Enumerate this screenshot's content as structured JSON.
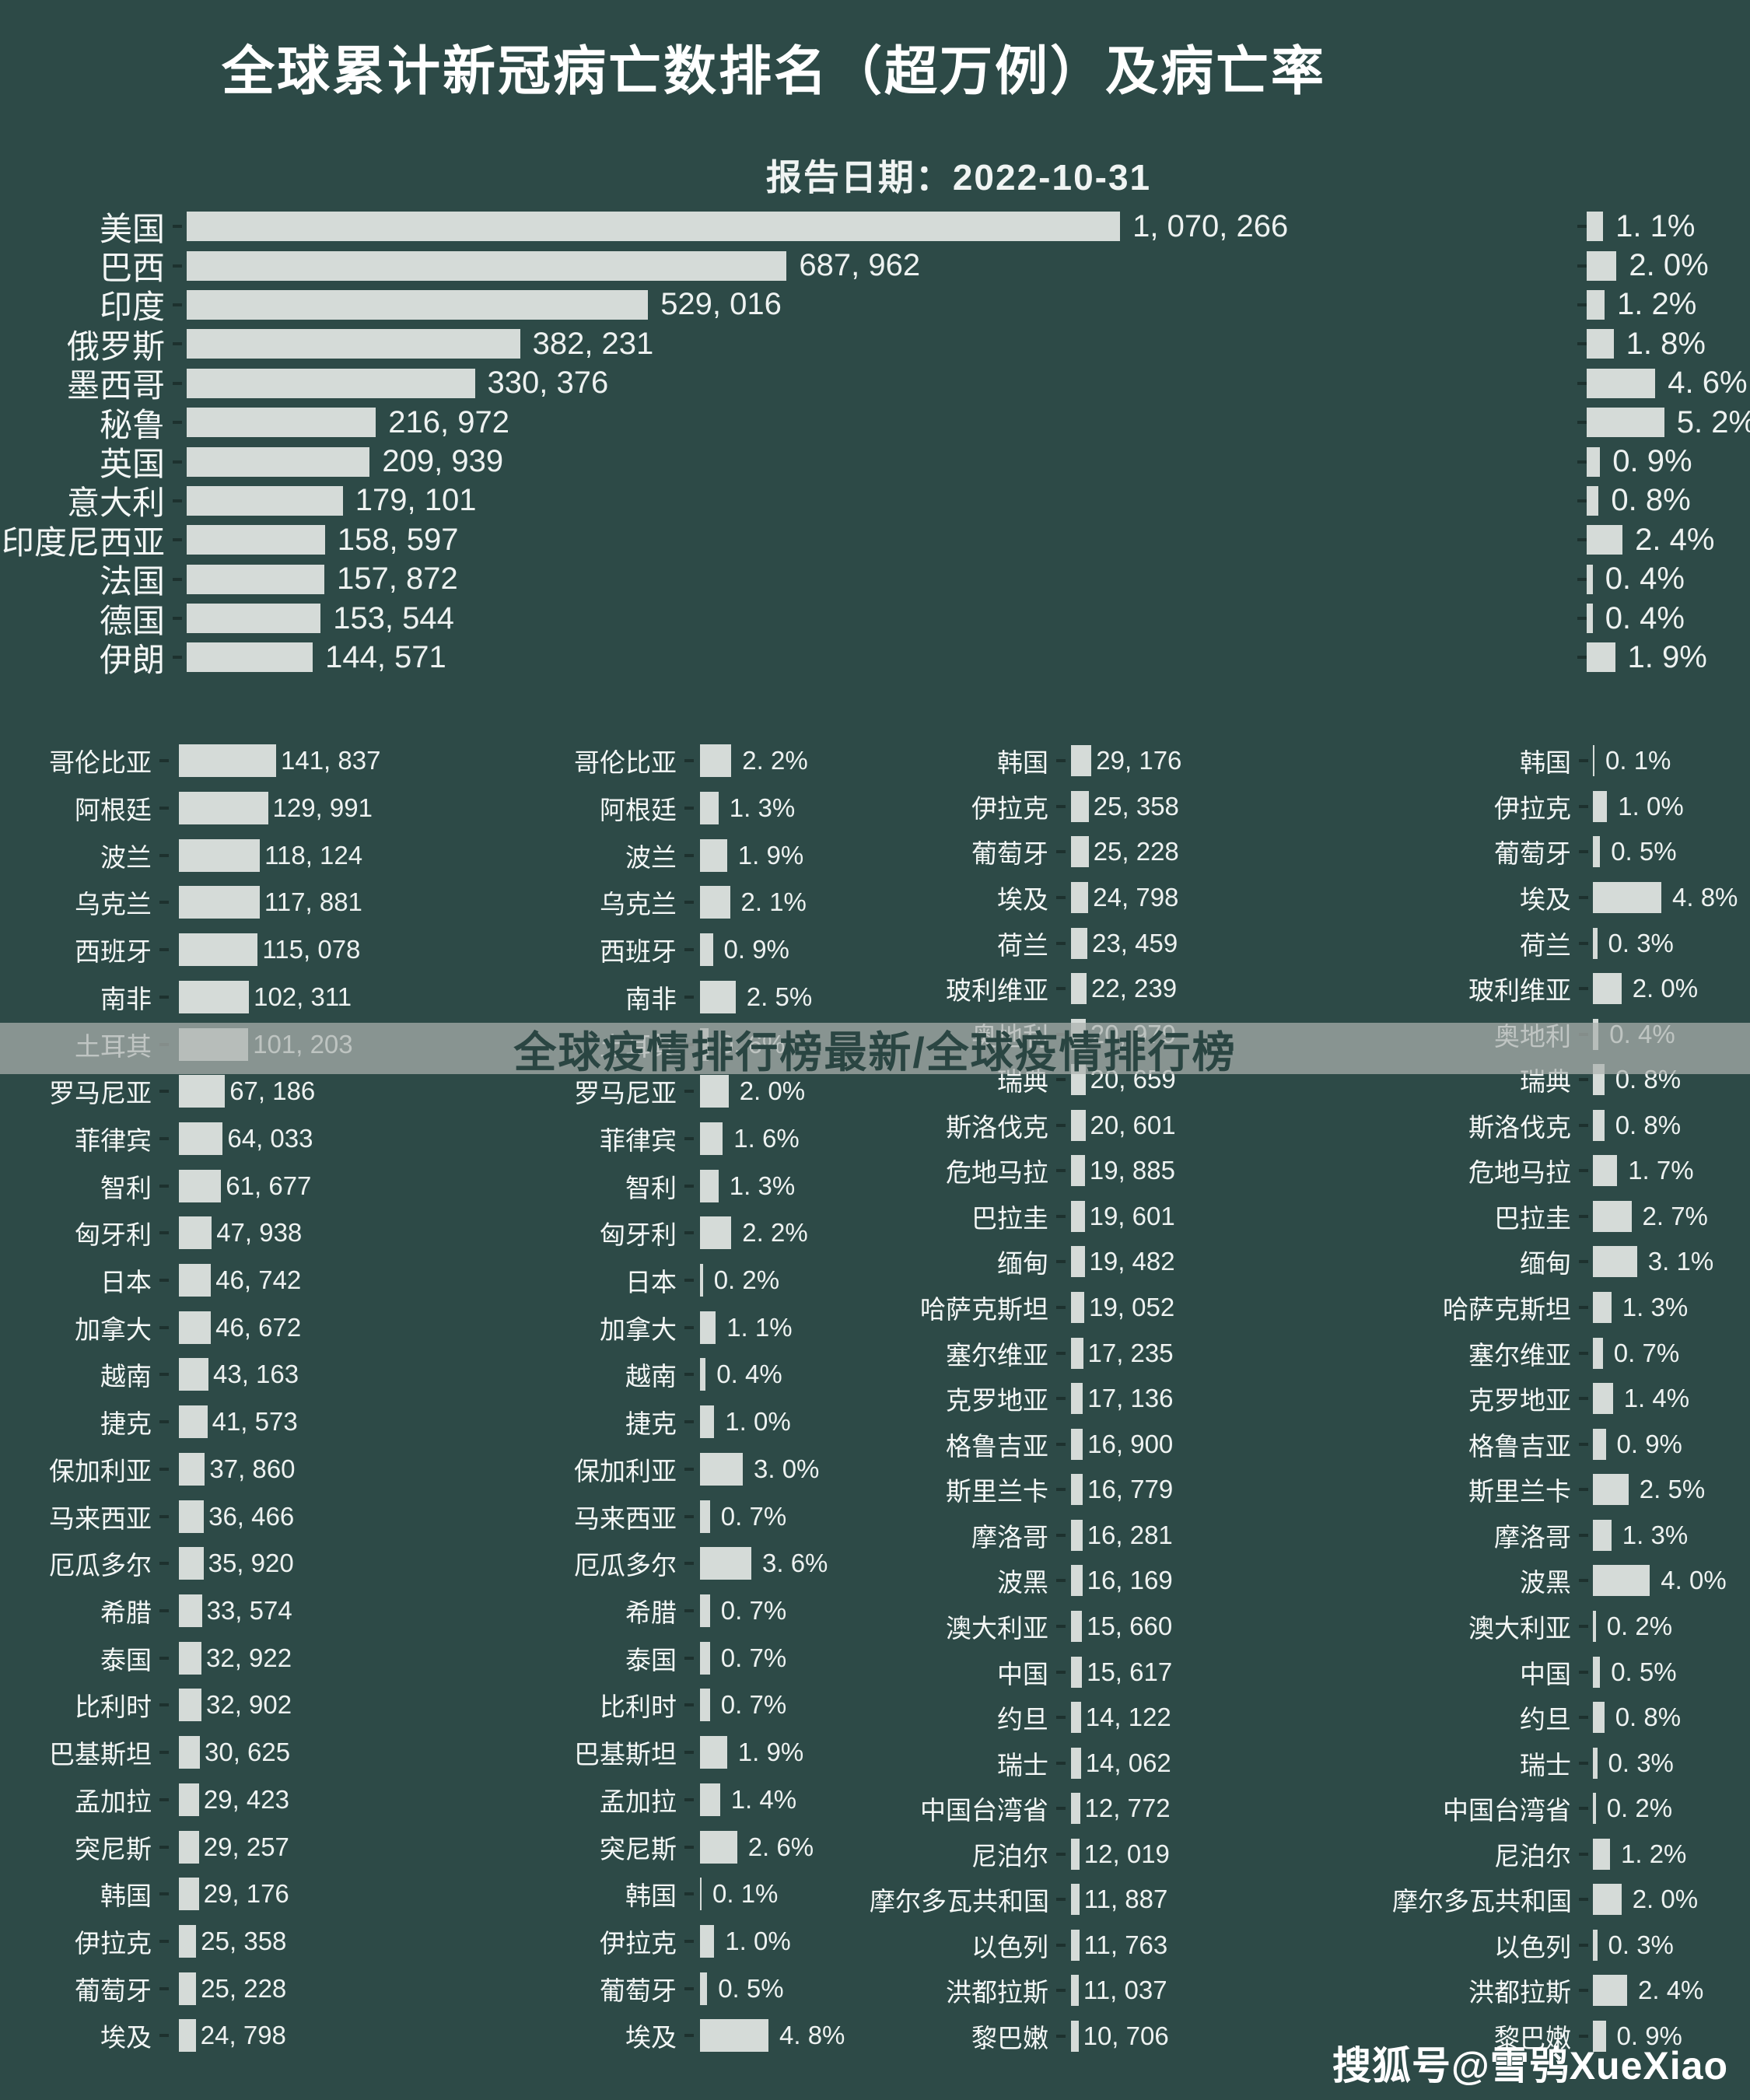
{
  "title": "全球累计新冠病亡数排名（超万例）及病亡率",
  "subtitle": "报告日期：2022-10-31",
  "watermarks": {
    "center": "全球疫情排行榜最新/全球疫情排行榜",
    "bottom": "搜狐号@雪鸮XueXiao"
  },
  "colors": {
    "background": "#2d4a47",
    "bar": "#d5dbd8",
    "text": "#f4f7f6",
    "band": "rgba(172,177,175,0.72)",
    "band_text": "#2a4542"
  },
  "chart_data": {
    "type": "bar",
    "orientation": "horizontal",
    "title": "全球累计新冠病亡数排名（超万例）及病亡率",
    "subtitle": "报告日期：2022-10-31",
    "value_series_name": "累计病亡数",
    "rate_series_name": "病亡率",
    "grid": false,
    "main": {
      "rows": [
        {
          "country": "美国",
          "deaths": "1, 070, 266",
          "rate": "1. 1%"
        },
        {
          "country": "巴西",
          "deaths": "687, 962",
          "rate": "2. 0%"
        },
        {
          "country": "印度",
          "deaths": "529, 016",
          "rate": "1. 2%"
        },
        {
          "country": "俄罗斯",
          "deaths": "382, 231",
          "rate": "1. 8%"
        },
        {
          "country": "墨西哥",
          "deaths": "330, 376",
          "rate": "4. 6%"
        },
        {
          "country": "秘鲁",
          "deaths": "216, 972",
          "rate": "5. 2%"
        },
        {
          "country": "英国",
          "deaths": "209, 939",
          "rate": "0. 9%"
        },
        {
          "country": "意大利",
          "deaths": "179, 101",
          "rate": "0. 8%"
        },
        {
          "country": "印度尼西亚",
          "deaths": "158, 597",
          "rate": "2. 4%"
        },
        {
          "country": "法国",
          "deaths": "157, 872",
          "rate": "0. 4%"
        },
        {
          "country": "德国",
          "deaths": "153, 544",
          "rate": "0. 4%"
        },
        {
          "country": "伊朗",
          "deaths": "144, 571",
          "rate": "1. 9%"
        }
      ]
    },
    "group1": {
      "rows": [
        {
          "country": "哥伦比亚",
          "deaths": "141, 837",
          "rate": "2. 2%"
        },
        {
          "country": "阿根廷",
          "deaths": "129, 991",
          "rate": "1. 3%"
        },
        {
          "country": "波兰",
          "deaths": "118, 124",
          "rate": "1. 9%"
        },
        {
          "country": "乌克兰",
          "deaths": "117, 881",
          "rate": "2. 1%"
        },
        {
          "country": "西班牙",
          "deaths": "115, 078",
          "rate": "0. 9%"
        },
        {
          "country": "南非",
          "deaths": "102, 311",
          "rate": "2. 5%"
        },
        {
          "country": "土耳其",
          "deaths": "101, 203",
          "rate": "0. 6%"
        },
        {
          "country": "罗马尼亚",
          "deaths": "67, 186",
          "rate": "2. 0%"
        },
        {
          "country": "菲律宾",
          "deaths": "64, 033",
          "rate": "1. 6%"
        },
        {
          "country": "智利",
          "deaths": "61, 677",
          "rate": "1. 3%"
        },
        {
          "country": "匈牙利",
          "deaths": "47, 938",
          "rate": "2. 2%"
        },
        {
          "country": "日本",
          "deaths": "46, 742",
          "rate": "0. 2%"
        },
        {
          "country": "加拿大",
          "deaths": "46, 672",
          "rate": "1. 1%"
        },
        {
          "country": "越南",
          "deaths": "43, 163",
          "rate": "0. 4%"
        },
        {
          "country": "捷克",
          "deaths": "41, 573",
          "rate": "1. 0%"
        },
        {
          "country": "保加利亚",
          "deaths": "37, 860",
          "rate": "3. 0%"
        },
        {
          "country": "马来西亚",
          "deaths": "36, 466",
          "rate": "0. 7%"
        },
        {
          "country": "厄瓜多尔",
          "deaths": "35, 920",
          "rate": "3. 6%"
        },
        {
          "country": "希腊",
          "deaths": "33, 574",
          "rate": "0. 7%"
        },
        {
          "country": "泰国",
          "deaths": "32, 922",
          "rate": "0. 7%"
        },
        {
          "country": "比利时",
          "deaths": "32, 902",
          "rate": "0. 7%"
        },
        {
          "country": "巴基斯坦",
          "deaths": "30, 625",
          "rate": "1. 9%"
        },
        {
          "country": "孟加拉",
          "deaths": "29, 423",
          "rate": "1. 4%"
        },
        {
          "country": "突尼斯",
          "deaths": "29, 257",
          "rate": "2. 6%"
        },
        {
          "country": "韩国",
          "deaths": "29, 176",
          "rate": "0. 1%"
        },
        {
          "country": "伊拉克",
          "deaths": "25, 358",
          "rate": "1. 0%"
        },
        {
          "country": "葡萄牙",
          "deaths": "25, 228",
          "rate": "0. 5%"
        },
        {
          "country": "埃及",
          "deaths": "24, 798",
          "rate": "4. 8%"
        }
      ]
    },
    "group2": {
      "rows": [
        {
          "country": "韩国",
          "deaths": "29, 176",
          "rate": "0. 1%"
        },
        {
          "country": "伊拉克",
          "deaths": "25, 358",
          "rate": "1. 0%"
        },
        {
          "country": "葡萄牙",
          "deaths": "25, 228",
          "rate": "0. 5%"
        },
        {
          "country": "埃及",
          "deaths": "24, 798",
          "rate": "4. 8%"
        },
        {
          "country": "荷兰",
          "deaths": "23, 459",
          "rate": "0. 3%"
        },
        {
          "country": "玻利维亚",
          "deaths": "22, 239",
          "rate": "2. 0%"
        },
        {
          "country": "奥地利",
          "deaths": "20, 979",
          "rate": "0. 4%"
        },
        {
          "country": "瑞典",
          "deaths": "20, 659",
          "rate": "0. 8%"
        },
        {
          "country": "斯洛伐克",
          "deaths": "20, 601",
          "rate": "0. 8%"
        },
        {
          "country": "危地马拉",
          "deaths": "19, 885",
          "rate": "1. 7%"
        },
        {
          "country": "巴拉圭",
          "deaths": "19, 601",
          "rate": "2. 7%"
        },
        {
          "country": "缅甸",
          "deaths": "19, 482",
          "rate": "3. 1%"
        },
        {
          "country": "哈萨克斯坦",
          "deaths": "19, 052",
          "rate": "1. 3%"
        },
        {
          "country": "塞尔维亚",
          "deaths": "17, 235",
          "rate": "0. 7%"
        },
        {
          "country": "克罗地亚",
          "deaths": "17, 136",
          "rate": "1. 4%"
        },
        {
          "country": "格鲁吉亚",
          "deaths": "16, 900",
          "rate": "0. 9%"
        },
        {
          "country": "斯里兰卡",
          "deaths": "16, 779",
          "rate": "2. 5%"
        },
        {
          "country": "摩洛哥",
          "deaths": "16, 281",
          "rate": "1. 3%"
        },
        {
          "country": "波黑",
          "deaths": "16, 169",
          "rate": "4. 0%"
        },
        {
          "country": "澳大利亚",
          "deaths": "15, 660",
          "rate": "0. 2%"
        },
        {
          "country": "中国",
          "deaths": "15, 617",
          "rate": "0. 5%"
        },
        {
          "country": "约旦",
          "deaths": "14, 122",
          "rate": "0. 8%"
        },
        {
          "country": "瑞士",
          "deaths": "14, 062",
          "rate": "0. 3%"
        },
        {
          "country": "中国台湾省",
          "deaths": "12, 772",
          "rate": "0. 2%"
        },
        {
          "country": "尼泊尔",
          "deaths": "12, 019",
          "rate": "1. 2%"
        },
        {
          "country": "摩尔多瓦共和国",
          "deaths": "11, 887",
          "rate": "2. 0%"
        },
        {
          "country": "以色列",
          "deaths": "11, 763",
          "rate": "0. 3%"
        },
        {
          "country": "洪都拉斯",
          "deaths": "11, 037",
          "rate": "2. 4%"
        },
        {
          "country": "黎巴嫩",
          "deaths": "10, 706",
          "rate": "0. 9%"
        }
      ]
    }
  }
}
